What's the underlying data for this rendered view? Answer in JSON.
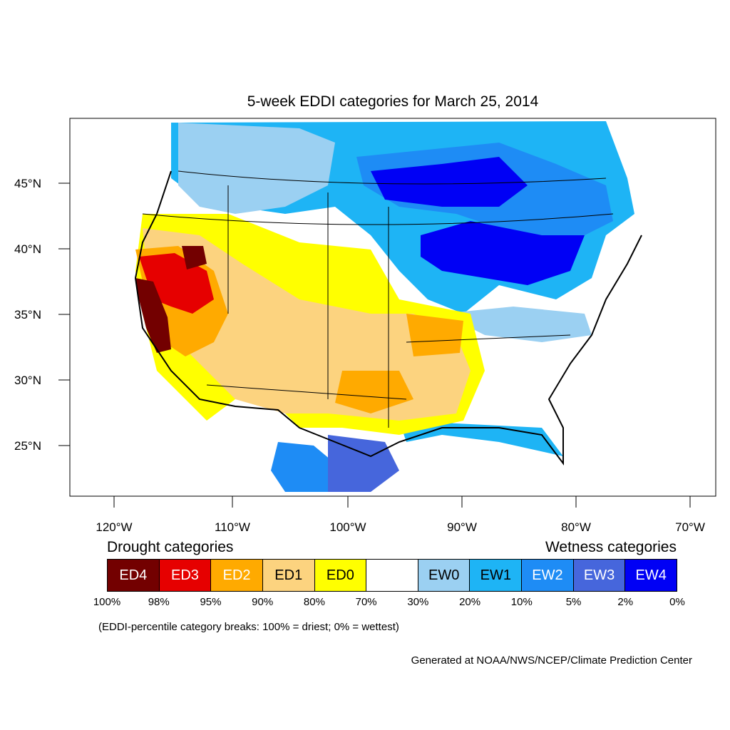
{
  "title": "5-week EDDI categories for March 25, 2014",
  "axes": {
    "lat_labels": [
      "45°N",
      "40°N",
      "35°N",
      "30°N",
      "25°N"
    ],
    "lon_labels": [
      "120°W",
      "110°W",
      "100°W",
      "90°W",
      "80°W",
      "70°W"
    ]
  },
  "legend": {
    "drought_heading": "Drought categories",
    "wet_heading": "Wetness categories",
    "boxes": [
      {
        "label": "ED4",
        "color": "#730000",
        "text_color": "#ffffff"
      },
      {
        "label": "ED3",
        "color": "#e60000",
        "text_color": "#ffffff"
      },
      {
        "label": "ED2",
        "color": "#ffaa00",
        "text_color": "#ffffff"
      },
      {
        "label": "ED1",
        "color": "#fcd37f",
        "text_color": "#000000"
      },
      {
        "label": "ED0",
        "color": "#ffff00",
        "text_color": "#000000"
      },
      {
        "label": "",
        "color": "#ffffff",
        "text_color": "#000000"
      },
      {
        "label": "EW0",
        "color": "#9bd0f2",
        "text_color": "#000000"
      },
      {
        "label": "EW1",
        "color": "#1eb4f5",
        "text_color": "#000000"
      },
      {
        "label": "EW2",
        "color": "#1e8cf5",
        "text_color": "#ffffff"
      },
      {
        "label": "EW3",
        "color": "#4666dc",
        "text_color": "#ffffff"
      },
      {
        "label": "EW4",
        "color": "#0000f5",
        "text_color": "#ffffff"
      }
    ],
    "breaks": [
      "100%",
      "98%",
      "95%",
      "90%",
      "80%",
      "70%",
      "30%",
      "20%",
      "10%",
      "5%",
      "2%",
      "0%"
    ]
  },
  "note": "(EDDI-percentile category breaks: 100% = driest; 0% = wettest)",
  "credit": "Generated at NOAA/NWS/NCEP/Climate Prediction Center"
}
